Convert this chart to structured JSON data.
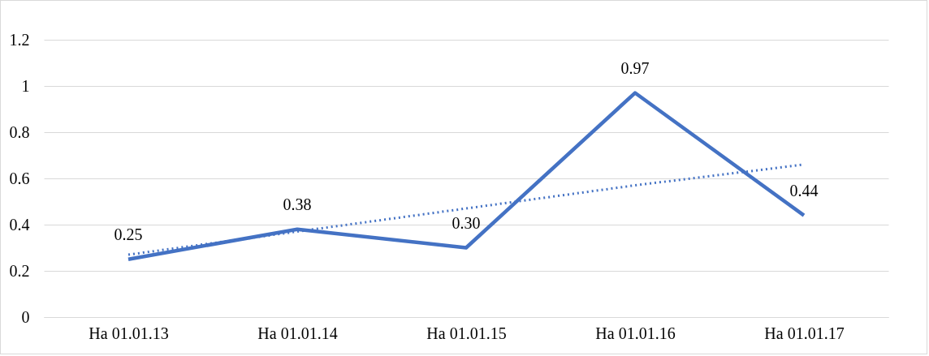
{
  "chart_data": {
    "type": "line",
    "categories": [
      "На 01.01.13",
      "На 01.01.14",
      "На 01.01.15",
      "На 01.01.16",
      "На 01.01.17"
    ],
    "series": [
      {
        "color": "#4472c4",
        "values": [
          0.25,
          0.38,
          0.3,
          0.97,
          0.44
        ],
        "value_labels": [
          "0.25",
          "0.38",
          "0.30",
          "0.97",
          "0.44"
        ],
        "line_style": "solid"
      },
      {
        "type": "line",
        "color": "#4472c4",
        "values": [
          0.27,
          0.37,
          0.47,
          0.57,
          0.66
        ],
        "line_style": "dotted"
      }
    ],
    "ylim": [
      0,
      1.2
    ],
    "yticks": [
      0,
      0.2,
      0.4,
      0.6,
      0.8,
      1,
      1.2
    ],
    "grid": "y",
    "marker": "none"
  }
}
